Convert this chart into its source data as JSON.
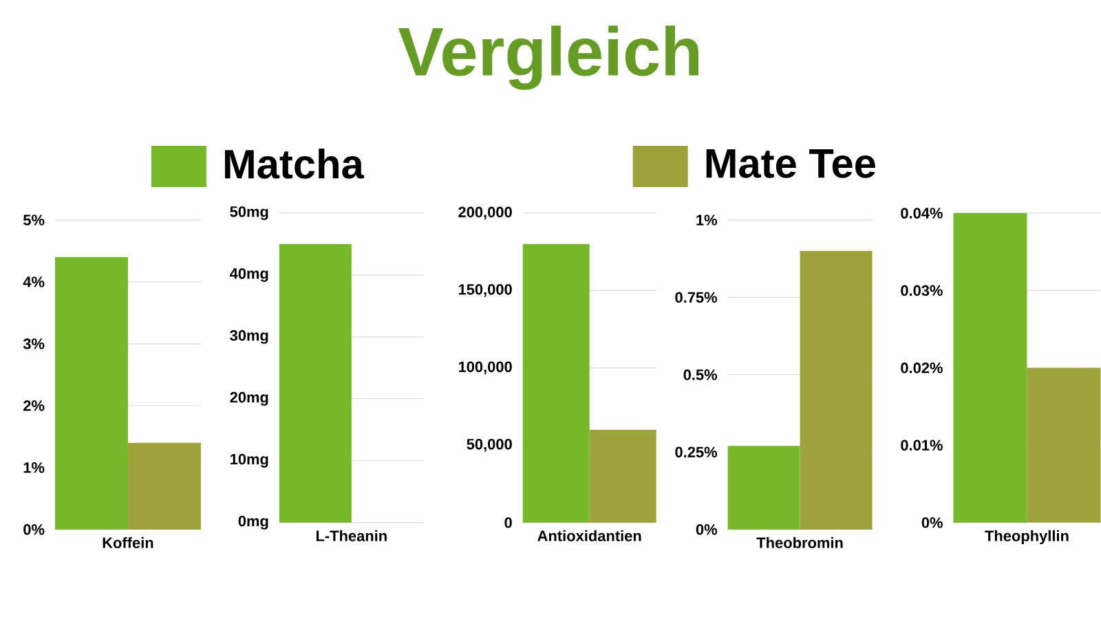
{
  "chart_data": [
    {
      "type": "bar",
      "categories": [
        "Koffein"
      ],
      "legend": "top",
      "grid": "y",
      "series": [
        {
          "name": "Matcha",
          "color": "#76b82a",
          "values": [
            4.4
          ]
        },
        {
          "name": "Mate Tee",
          "color": "#9ea23a",
          "values": [
            1.4
          ]
        }
      ],
      "ylim": [
        0,
        5
      ],
      "yticks": [
        {
          "value": 0,
          "label": "0%"
        },
        {
          "value": 1,
          "label": "1%"
        },
        {
          "value": 2,
          "label": "2%"
        },
        {
          "value": 3,
          "label": "3%"
        },
        {
          "value": 4,
          "label": "4%"
        },
        {
          "value": 5,
          "label": "5%"
        }
      ]
    },
    {
      "type": "bar",
      "categories": [
        "L-Theanin"
      ],
      "grid": "y",
      "series": [
        {
          "color": "#76b82a",
          "values": [
            45
          ]
        },
        {
          "color": "#9ea23a",
          "values": [
            0
          ]
        }
      ],
      "ylim": [
        0,
        50
      ],
      "yticks": [
        {
          "value": 0,
          "label": "0mg"
        },
        {
          "value": 10,
          "label": "10mg"
        },
        {
          "value": 20,
          "label": "20mg"
        },
        {
          "value": 30,
          "label": "30mg"
        },
        {
          "value": 40,
          "label": "40mg"
        },
        {
          "value": 50,
          "label": "50mg"
        }
      ]
    },
    {
      "type": "bar",
      "title": "Vergleich",
      "categories": [
        "Antioxidantien"
      ],
      "grid": "y",
      "series": [
        {
          "color": "#76b82a",
          "values": [
            180000
          ]
        },
        {
          "color": "#9ea23a",
          "values": [
            60000
          ]
        }
      ],
      "ylim": [
        0,
        200000
      ],
      "yticks": [
        0,
        {
          "value": 50000,
          "label": "50,000"
        },
        {
          "value": 100000,
          "label": "100,000"
        },
        {
          "value": 150000,
          "label": "150,000"
        },
        {
          "value": 200000,
          "label": "200,000"
        }
      ]
    },
    {
      "type": "bar",
      "categories": [
        "Theobromin"
      ],
      "grid": "y",
      "series": [
        {
          "color": "#76b82a",
          "values": [
            0.27
          ]
        },
        {
          "color": "#9ea23a",
          "values": [
            0.9
          ]
        }
      ],
      "ylim": [
        0,
        1
      ],
      "yticks": [
        {
          "value": 0,
          "label": "0%"
        },
        {
          "value": 0.25,
          "label": "0.25%"
        },
        {
          "value": 0.5,
          "label": "0.5%"
        },
        {
          "value": 0.75,
          "label": "0.75%"
        },
        {
          "value": 1,
          "label": "1%"
        }
      ]
    },
    {
      "type": "bar",
      "categories": [
        "Theophyllin"
      ],
      "grid": "y",
      "series": [
        {
          "color": "#76b82a",
          "values": [
            0.04
          ]
        },
        {
          "color": "#9ea23a",
          "values": [
            0.02
          ]
        }
      ],
      "ylim": [
        0,
        0.04
      ],
      "yticks": [
        {
          "value": 0,
          "label": "0%"
        },
        {
          "value": 0.01,
          "label": "0.01%"
        },
        {
          "value": 0.02,
          "label": "0.02%"
        },
        {
          "value": 0.03,
          "label": "0.03%"
        },
        {
          "value": 0.04,
          "label": "0.04%"
        }
      ]
    }
  ]
}
